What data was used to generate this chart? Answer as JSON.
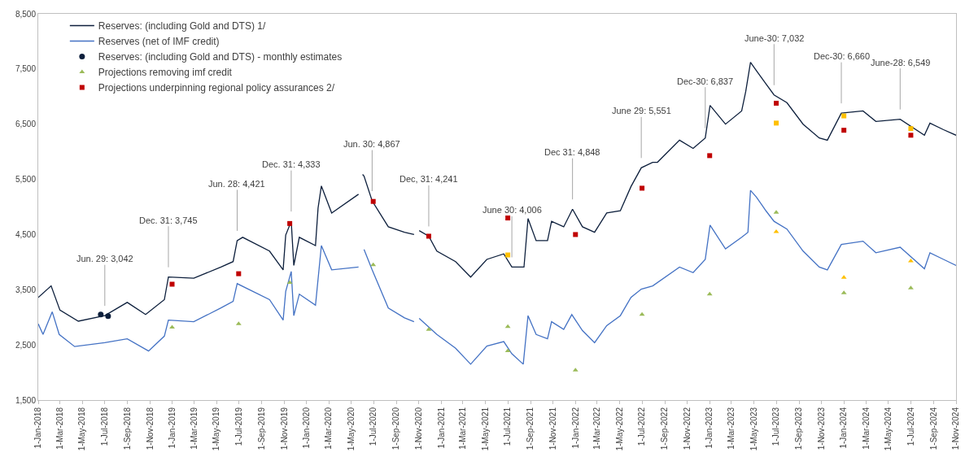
{
  "chart_data": {
    "type": "line",
    "legend": "top left",
    "grid": false,
    "marker": "none",
    "xlim": [
      "2018-01-01",
      "2024-11-01"
    ],
    "xticks": [
      {
        "value": "2018-01-01",
        "label": "1-Jan-2018"
      },
      {
        "value": "2018-03-01",
        "label": "1-Mar-2018"
      },
      {
        "value": "2018-05-01",
        "label": "1-May-2018"
      },
      {
        "value": "2018-07-01",
        "label": "1-Jul-2018"
      },
      {
        "value": "2018-09-01",
        "label": "1-Sep-2018"
      },
      {
        "value": "2018-11-01",
        "label": "1-Nov-2018"
      },
      {
        "value": "2019-01-01",
        "label": "1-Jan-2019"
      },
      {
        "value": "2019-03-01",
        "label": "1-Mar-2019"
      },
      {
        "value": "2019-05-01",
        "label": "1-May-2019"
      },
      {
        "value": "2019-07-01",
        "label": "1-Jul-2019"
      },
      {
        "value": "2019-09-01",
        "label": "1-Sep-2019"
      },
      {
        "value": "2019-11-01",
        "label": "1-Nov-2019"
      },
      {
        "value": "2020-01-01",
        "label": "1-Jan-2020"
      },
      {
        "value": "2020-03-01",
        "label": "1-Mar-2020"
      },
      {
        "value": "2020-05-01",
        "label": "1-May-2020"
      },
      {
        "value": "2020-07-01",
        "label": "1-Jul-2020"
      },
      {
        "value": "2020-09-01",
        "label": "1-Sep-2020"
      },
      {
        "value": "2020-11-01",
        "label": "1-Nov-2020"
      },
      {
        "value": "2021-01-01",
        "label": "1-Jan-2021"
      },
      {
        "value": "2021-03-01",
        "label": "1-Mar-2021"
      },
      {
        "value": "2021-05-01",
        "label": "1-May-2021"
      },
      {
        "value": "2021-07-01",
        "label": "1-Jul-2021"
      },
      {
        "value": "2021-09-01",
        "label": "1-Sep-2021"
      },
      {
        "value": "2021-11-01",
        "label": "1-Nov-2021"
      },
      {
        "value": "2022-01-01",
        "label": "1-Jan-2022"
      },
      {
        "value": "2022-03-01",
        "label": "1-Mar-2022"
      },
      {
        "value": "2022-05-01",
        "label": "1-May-2022"
      },
      {
        "value": "2022-07-01",
        "label": "1-Jul-2022"
      },
      {
        "value": "2022-09-01",
        "label": "1-Sep-2022"
      },
      {
        "value": "2022-11-01",
        "label": "1-Nov-2022"
      },
      {
        "value": "2023-01-01",
        "label": "1-Jan-2023"
      },
      {
        "value": "2023-03-01",
        "label": "1-Mar-2023"
      },
      {
        "value": "2023-05-01",
        "label": "1-May-2023"
      },
      {
        "value": "2023-07-01",
        "label": "1-Jul-2023"
      },
      {
        "value": "2023-09-01",
        "label": "1-Sep-2023"
      },
      {
        "value": "2023-11-01",
        "label": "1-Nov-2023"
      },
      {
        "value": "2024-01-01",
        "label": "1-Jan-2024"
      },
      {
        "value": "2024-03-01",
        "label": "1-Mar-2024"
      },
      {
        "value": "2024-05-01",
        "label": "1-May-2024"
      },
      {
        "value": "2024-07-01",
        "label": "1-Jul-2024"
      },
      {
        "value": "2024-09-01",
        "label": "1-Sep-2024"
      },
      {
        "value": "2024-11-01",
        "label": "1-Nov-2024"
      }
    ],
    "ylim": [
      1500,
      8500
    ],
    "yticks": [
      {
        "value": 1500,
        "label": "1,500"
      },
      {
        "value": 2500,
        "label": "2,500"
      },
      {
        "value": 3500,
        "label": "3,500"
      },
      {
        "value": 4500,
        "label": "4,500"
      },
      {
        "value": 5500,
        "label": "5,500"
      },
      {
        "value": 6500,
        "label": "6,500"
      },
      {
        "value": 7500,
        "label": "7,500"
      },
      {
        "value": 8500,
        "label": "8,500"
      }
    ],
    "series": [
      {
        "name": "Reserves: (including Gold and DTS) 1/",
        "color": "#0d1f3c",
        "x": [
          "2018-01-01",
          "2018-02-05",
          "2018-03-01",
          "2018-04-20",
          "2018-07-01",
          "2018-08-31",
          "2018-10-20",
          "2018-12-10",
          "2018-12-21",
          "2019-02-28",
          "2019-05-13",
          "2019-06-15",
          "2019-06-26",
          "2019-07-11",
          "2019-09-22",
          "2019-10-29",
          "2019-11-05",
          "2019-11-20",
          "2019-11-27",
          "2019-12-12",
          "2020-01-25",
          "2020-02-01",
          "2020-02-10",
          "2020-03-09",
          "2020-05-21",
          "2020-05-26",
          "2020-06-01",
          "2020-06-05",
          "2020-06-27",
          "2020-08-10",
          "2020-09-23",
          "2020-10-19",
          "2020-10-26",
          "2020-11-02",
          "2020-11-28",
          "2020-12-20",
          "2021-02-09",
          "2021-03-22",
          "2021-05-05",
          "2021-06-20",
          "2021-07-12",
          "2021-08-14",
          "2021-08-25",
          "2021-09-16",
          "2021-10-17",
          "2021-10-28",
          "2021-11-30",
          "2021-12-24",
          "2022-01-20",
          "2022-02-22",
          "2022-03-27",
          "2022-05-03",
          "2022-06-01",
          "2022-06-29",
          "2022-07-30",
          "2022-08-12",
          "2022-10-11",
          "2022-11-17",
          "2022-12-20",
          "2023-01-02",
          "2023-02-13",
          "2023-03-29",
          "2023-04-09",
          "2023-04-22",
          "2023-05-08",
          "2023-06-03",
          "2023-06-25",
          "2023-07-30",
          "2023-09-12",
          "2023-10-26",
          "2023-11-17",
          "2023-12-25",
          "2024-02-22",
          "2024-03-28",
          "2024-06-02",
          "2024-08-07",
          "2024-08-22",
          "2024-09-28",
          "2024-11-01"
        ],
        "values": [
          3360,
          3570,
          3130,
          2930,
          3030,
          3270,
          3050,
          3320,
          3730,
          3710,
          3910,
          4010,
          4390,
          4450,
          4200,
          3860,
          4490,
          4740,
          3940,
          4450,
          4300,
          4980,
          5380,
          4890,
          5230,
          null,
          5590,
          5560,
          5110,
          4640,
          4540,
          4500,
          null,
          4570,
          4470,
          4200,
          4010,
          3730,
          4050,
          4150,
          3910,
          3910,
          4790,
          4390,
          4390,
          4740,
          4640,
          4960,
          4640,
          4540,
          4890,
          4930,
          5370,
          5710,
          5810,
          5810,
          6210,
          6060,
          6250,
          6840,
          6500,
          6740,
          7090,
          7620,
          7470,
          7230,
          7030,
          6890,
          6500,
          6250,
          6210,
          6700,
          6740,
          6550,
          6590,
          6300,
          6520,
          6400,
          6300
        ]
      },
      {
        "name": "Reserves (net of IMF credit)",
        "color": "#4472c4",
        "x": [
          "2018-01-01",
          "2018-01-14",
          "2018-02-08",
          "2018-02-27",
          "2018-04-10",
          "2018-07-01",
          "2018-08-31",
          "2018-10-28",
          "2018-12-10",
          "2018-12-21",
          "2019-02-28",
          "2019-05-13",
          "2019-06-15",
          "2019-06-26",
          "2019-09-22",
          "2019-10-29",
          "2019-11-05",
          "2019-11-20",
          "2019-11-27",
          "2019-12-12",
          "2020-01-25",
          "2020-02-10",
          "2020-03-09",
          "2020-05-21",
          "2020-05-26",
          "2020-06-05",
          "2020-06-27",
          "2020-08-10",
          "2020-09-23",
          "2020-10-19",
          "2020-10-26",
          "2020-11-02",
          "2020-12-20",
          "2021-02-09",
          "2021-03-22",
          "2021-05-05",
          "2021-06-20",
          "2021-07-12",
          "2021-08-12",
          "2021-08-25",
          "2021-09-16",
          "2021-10-17",
          "2021-10-28",
          "2021-11-30",
          "2021-12-22",
          "2022-01-20",
          "2022-02-22",
          "2022-03-27",
          "2022-05-03",
          "2022-06-01",
          "2022-06-29",
          "2022-07-30",
          "2022-10-11",
          "2022-11-17",
          "2022-12-20",
          "2023-01-02",
          "2023-02-13",
          "2023-03-29",
          "2023-04-15",
          "2023-04-22",
          "2023-05-08",
          "2023-06-03",
          "2023-06-25",
          "2023-07-30",
          "2023-09-12",
          "2023-10-26",
          "2023-11-17",
          "2023-12-25",
          "2024-02-22",
          "2024-03-28",
          "2024-06-02",
          "2024-08-07",
          "2024-08-22",
          "2024-09-28",
          "2024-11-01"
        ],
        "values": [
          2880,
          2690,
          3100,
          2690,
          2470,
          2540,
          2610,
          2390,
          2660,
          2950,
          2920,
          3170,
          3290,
          3610,
          3320,
          2950,
          3470,
          3830,
          3030,
          3420,
          3220,
          4300,
          3860,
          3910,
          null,
          4230,
          3860,
          3170,
          2990,
          2920,
          null,
          2980,
          2690,
          2440,
          2150,
          2480,
          2560,
          2340,
          2150,
          3030,
          2690,
          2610,
          2920,
          2780,
          3050,
          2760,
          2540,
          2850,
          3030,
          3360,
          3510,
          3570,
          3910,
          3810,
          4050,
          4670,
          4240,
          4450,
          4540,
          5300,
          5180,
          4930,
          4740,
          4600,
          4200,
          3910,
          3860,
          4320,
          4380,
          4170,
          4270,
          3880,
          4170,
          4050,
          3940
        ]
      },
      {
        "name": "Reserves: (including Gold and DTS) - monthly estimates",
        "color": "#0d1f3c",
        "type": "scatter",
        "marker": "circle",
        "x": [
          "2018-06-20",
          "2018-07-10"
        ],
        "values": [
          3050,
          3020
        ]
      },
      {
        "name": "Projections removing imf credit",
        "color": "#9bbb59",
        "type": "scatter",
        "marker": "triangle",
        "x": [
          "2018-12-31",
          "2019-06-30",
          "2019-11-16",
          "2020-06-30",
          "2020-11-28",
          "2021-07-01",
          "2021-07-01",
          "2022-01-01",
          "2022-07-01",
          "2023-01-01",
          "2023-07-01",
          "2024-01-01",
          "2024-07-01"
        ],
        "values": [
          2820,
          2880,
          3630,
          3950,
          2780,
          2830,
          2390,
          2040,
          3050,
          3420,
          4900,
          3440,
          3530
        ]
      },
      {
        "name": "Projections underpinning regional policy assurances 2/",
        "color": "#c00000",
        "type": "scatter",
        "marker": "square",
        "x": [
          "2018-12-31",
          "2019-06-30",
          "2019-11-16",
          "2020-06-30",
          "2020-11-28",
          "2021-07-01",
          "2022-01-01",
          "2022-07-01",
          "2023-01-01",
          "2023-07-01",
          "2024-01-01",
          "2024-07-01"
        ],
        "values": [
          3600,
          3790,
          4700,
          5100,
          4470,
          4800,
          4500,
          5340,
          5930,
          6880,
          6390,
          6300
        ]
      },
      {
        "color": "#ffc000",
        "type": "scatter",
        "marker": "square",
        "x": [
          "2021-07-01",
          "2023-07-01",
          "2024-01-01",
          "2024-07-01"
        ],
        "values": [
          4130,
          6520,
          6650,
          6420
        ]
      },
      {
        "color": "#ffc000",
        "type": "scatter",
        "marker": "triangle",
        "x": [
          "2023-07-01",
          "2024-01-01",
          "2024-07-01"
        ],
        "values": [
          4550,
          3720,
          4020
        ]
      }
    ],
    "annotations": [
      {
        "text": "Jun. 29: 3,042",
        "x": "2018-07-01",
        "y": 3030
      },
      {
        "text": "Dec. 31: 3,745",
        "x": "2018-12-21",
        "y": 3730
      },
      {
        "text": "Jun. 28: 4,421",
        "x": "2019-06-26",
        "y": 4390
      },
      {
        "text": "Dec. 31: 4,333",
        "x": "2019-11-20",
        "y": 4740
      },
      {
        "text": "Jun. 30: 4,867",
        "x": "2020-06-27",
        "y": 5110
      },
      {
        "text": "Dec, 31: 4,241",
        "x": "2020-11-28",
        "y": 4470
      },
      {
        "text": "June 30: 4,006",
        "x": "2021-07-12",
        "y": 3910
      },
      {
        "text": "Dec 31: 4,848",
        "x": "2021-12-24",
        "y": 4960
      },
      {
        "text": "June 29: 5,551",
        "x": "2022-06-29",
        "y": 5710
      },
      {
        "text": "Dec-30: 6,837",
        "x": "2022-12-20",
        "y": 6250
      },
      {
        "text": "June-30: 7,032",
        "x": "2023-06-25",
        "y": 7030
      },
      {
        "text": "Dec-30: 6,660",
        "x": "2023-12-25",
        "y": 6700
      },
      {
        "text": "June-28: 6,549",
        "x": "2024-06-02",
        "y": 6590
      }
    ]
  }
}
